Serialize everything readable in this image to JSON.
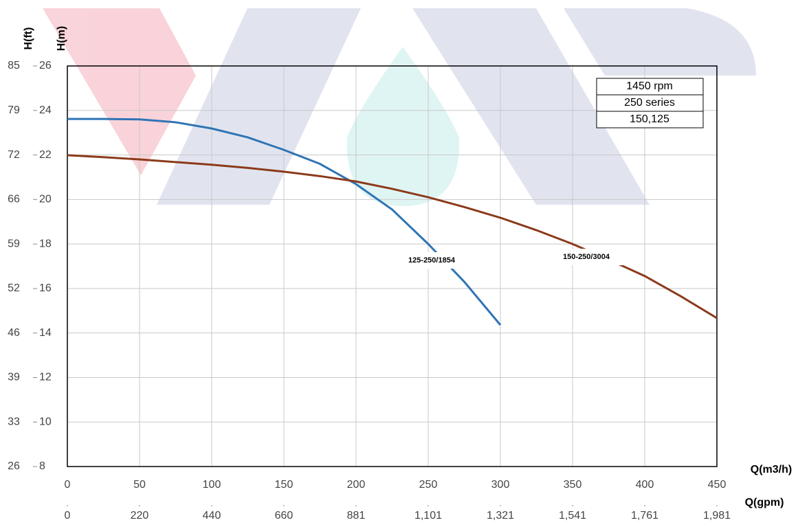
{
  "chart_data": {
    "type": "line",
    "x_label": "Q(m3/h)",
    "x2_label": "Q(gpm)",
    "y_label": "H(m)",
    "y2_label": "H(ft)",
    "x": [
      0,
      25,
      50,
      75,
      100,
      125,
      150,
      175,
      200,
      225,
      250,
      275,
      300,
      325,
      350,
      375,
      400,
      425,
      450
    ],
    "series": [
      {
        "name": "125-250/1854",
        "color": "#2f74b5",
        "values": [
          23.62,
          23.62,
          23.6,
          23.47,
          23.19,
          22.79,
          22.23,
          21.6,
          20.69,
          19.55,
          18.0,
          16.3,
          14.36,
          null,
          null,
          null,
          null,
          null,
          null
        ]
      },
      {
        "name": "150-250/3004",
        "color": "#8b3a1a",
        "values": [
          21.99,
          21.9,
          21.8,
          21.68,
          21.56,
          21.42,
          21.25,
          21.05,
          20.81,
          20.48,
          20.1,
          19.66,
          19.18,
          18.62,
          18.0,
          17.3,
          16.56,
          15.65,
          14.67
        ]
      }
    ],
    "xlim": [
      0,
      450
    ],
    "xticks": [
      0,
      50,
      100,
      150,
      200,
      250,
      300,
      350,
      400,
      450
    ],
    "x2lim": [
      0,
      1981.3
    ],
    "x2ticks": [
      0,
      {
        "value": 220.1,
        "label": "220"
      },
      {
        "value": 440.3,
        "label": "440"
      },
      {
        "value": 660.4,
        "label": "660"
      },
      {
        "value": 880.6,
        "label": "881"
      },
      {
        "value": 1100.7,
        "label": "1,101"
      },
      {
        "value": 1320.9,
        "label": "1,321"
      },
      {
        "value": 1541.0,
        "label": "1,541"
      },
      {
        "value": 1761.2,
        "label": "1,761"
      },
      {
        "value": 1981.3,
        "label": "1,981"
      }
    ],
    "ylim": [
      8,
      26
    ],
    "yticks": [
      8,
      10,
      12,
      14,
      16,
      18,
      20,
      22,
      24,
      26
    ],
    "y2lim": [
      26.25,
      85.3
    ],
    "y2ticks": [
      {
        "value": 26.25,
        "label": "26"
      },
      {
        "value": 32.81,
        "label": "33"
      },
      {
        "value": 39.37,
        "label": "39"
      },
      {
        "value": 45.93,
        "label": "46"
      },
      {
        "value": 52.49,
        "label": "52"
      },
      {
        "value": 59.05,
        "label": "59"
      },
      {
        "value": 65.62,
        "label": "66"
      },
      {
        "value": 72.18,
        "label": "72"
      },
      {
        "value": 78.74,
        "label": "79"
      },
      {
        "value": 85.3,
        "label": "85"
      }
    ],
    "grid": true,
    "info_box": [
      "1450 rpm",
      "250 series",
      "150,125"
    ]
  }
}
